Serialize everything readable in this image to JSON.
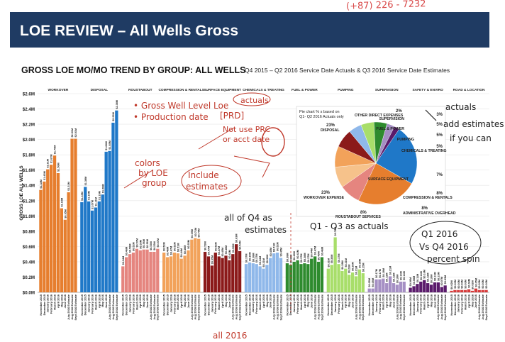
{
  "header": {
    "title": "LOE REVIEW – All Wells Gross",
    "phone_note": "(+87) 226 - 7232"
  },
  "subtitle": {
    "main": "GROSS LOE MO/MO TREND BY GROUP: ALL WELLS",
    "detail": "Q4 2015 – Q2 2016 Service Date Actuals & Q3 2016 Service Date Estimates"
  },
  "chart_data": [
    {
      "type": "bar",
      "ylabel": "GROSS LOE ALL WELLS",
      "ylim": [
        0,
        2.6
      ],
      "yticks": [
        "$0.0M",
        "$0.2M",
        "$0.4M",
        "$0.6M",
        "$0.8M",
        "$1.0M",
        "$1.2M",
        "$1.4M",
        "$1.6M",
        "$1.8M",
        "$2.0M",
        "$2.2M",
        "$2.4M",
        "$2.6M"
      ],
      "categories": [
        "November 2015",
        "December 2015",
        "January 2016",
        "February 2016",
        "March 2016",
        "April 2016",
        "May 2016",
        "June 2016",
        "July 2016 Estimate",
        "Aug 2016 Estimate",
        "Sept 2016 Estimate"
      ],
      "groups": [
        {
          "name": "WORKOVER",
          "color": "#e67e2e",
          "values": [
            1.34,
            1.45,
            1.61,
            1.67,
            1.79,
            1.56,
            1.1,
            0.95,
            1.31,
            2.01,
            2.01
          ]
        },
        {
          "name": "DISPOSAL",
          "color": "#1f78c8",
          "values": [
            1.18,
            1.38,
            1.19,
            1.07,
            1.11,
            1.19,
            1.28,
            1.84,
            1.85,
            2.22,
            2.38
          ]
        },
        {
          "name": "ROUSTABOUT",
          "color": "#e5857f",
          "values": [
            0.34,
            0.46,
            0.5,
            0.52,
            0.57,
            0.55,
            0.56,
            0.56,
            0.53,
            0.53,
            0.57
          ]
        },
        {
          "name": "COMPRESSION & RENTALS",
          "color": "#f2a25a",
          "values": [
            0.52,
            0.46,
            0.47,
            0.52,
            0.51,
            0.44,
            0.48,
            0.55,
            0.69,
            0.71,
            0.7
          ]
        },
        {
          "name": "SURFACE EQUIPMENT",
          "color": "#8b1a1a",
          "values": [
            0.53,
            0.47,
            0.35,
            0.52,
            0.47,
            0.45,
            0.48,
            0.42,
            0.5,
            0.63,
            0.54
          ]
        },
        {
          "name": "CHEMICALS & TREATING",
          "color": "#8fb8ea",
          "values": [
            0.37,
            0.39,
            0.38,
            0.37,
            0.34,
            0.31,
            0.36,
            0.45,
            0.51,
            0.52,
            0.45
          ]
        },
        {
          "name": "FUEL & POWER",
          "color": "#2e8b2e",
          "values": [
            0.38,
            0.36,
            0.4,
            0.42,
            0.37,
            0.38,
            0.37,
            0.44,
            0.47,
            0.4,
            0.46
          ]
        },
        {
          "name": "PUMPING",
          "color": "#a8de6a",
          "values": [
            0.31,
            0.36,
            0.72,
            0.37,
            0.28,
            0.31,
            0.23,
            0.26,
            0.21,
            0.3,
            0.25
          ]
        },
        {
          "name": "SUPERVISION",
          "color": "#a58fc4",
          "values": [
            0.05,
            0.05,
            0.17,
            0.17,
            0.18,
            0.12,
            0.21,
            0.12,
            0.1,
            0.14,
            0.14
          ]
        },
        {
          "name": "SAFETY & ENVIRO",
          "color": "#5a1a6b",
          "values": [
            0.06,
            0.08,
            0.11,
            0.14,
            0.16,
            0.12,
            0.1,
            0.13,
            0.13,
            0.07,
            0.09
          ]
        },
        {
          "name": "ROAD & LOCATION",
          "color": "#d63a3a",
          "values": [
            0.02,
            0.03,
            0.03,
            0.03,
            0.03,
            0.04,
            0.02,
            0.05,
            0.03,
            0.03,
            0.03
          ]
        }
      ],
      "data_labels": [
        [
          "$1.34M",
          "$1.45M",
          "$1.61M",
          "$1.67M",
          "$1.79M",
          "$1.56M",
          "$1.10M",
          "$0.95M",
          "$1.31M",
          "$2.01M",
          "$2.01M"
        ],
        [
          "$1.18M",
          "$1.38M",
          "$1.19M",
          "$1.07M",
          "$1.11M",
          "$1.19M",
          "$1.28M",
          "$1.84M",
          "$1.85M",
          "$2.22M",
          "$2.38M"
        ],
        [
          "$0.34M",
          "$0.46M",
          "$0.50M",
          "$0.52M",
          "$0.57M",
          "$0.55M",
          "$0.56M",
          "$0.56M",
          "$0.53M",
          "$0.53M",
          "$0.57M"
        ],
        [
          "$0.52M",
          "$0.46M",
          "$0.47M",
          "$0.52M",
          "$0.51M",
          "$0.44M",
          "$0.48M",
          "$0.55M",
          "$0.69M",
          "$0.71M",
          "$0.70M"
        ],
        [
          "$0.53M",
          "$0.47M",
          "$0.35M",
          "$0.52M",
          "$0.47M",
          "$0.45M",
          "$0.48M",
          "$0.42M",
          "$0.50M",
          "$0.63M",
          "$0.54M"
        ],
        [
          "$0.37M",
          "$0.39M",
          "$0.38M",
          "$0.37M",
          "$0.34M",
          "$0.31M",
          "$0.36M",
          "$0.45M",
          "$0.51M",
          "$0.52M",
          "$0.45M"
        ],
        [
          "$0.38M",
          "$0.36M",
          "$0.40M",
          "$0.42M",
          "$0.37M",
          "$0.38M",
          "$0.37M",
          "$0.44M",
          "$0.47M",
          "$0.40M",
          "$0.46M"
        ],
        [
          "$0.31M",
          "$0.36M",
          "$0.72M",
          "$0.37M",
          "$0.28M",
          "$0.31M",
          "$0.23M",
          "$0.26M",
          "$0.21M",
          "$0.30M",
          "$0.25M"
        ],
        [
          "$0.05M",
          "$0.05M",
          "$0.17M",
          "$0.17M",
          "$0.18M",
          "$0.12M",
          "$0.21M",
          "$0.12M",
          "$0.10M",
          "$0.14M",
          "$0.14M"
        ],
        [
          "$0.06M",
          "$0.08M",
          "$0.11M",
          "$0.14M",
          "$0.16M",
          "$0.12M",
          "$0.10M",
          "$0.13M",
          "$0.13M",
          "$0.07M",
          "$0.09M"
        ],
        [
          "$0.02M",
          "$0.03M",
          "$0.03M",
          "$0.03M",
          "$0.03M",
          "$0.04M",
          "$0.02M",
          "$0.05M",
          "$0.03M",
          "$0.03M",
          "$0.03M"
        ]
      ]
    },
    {
      "type": "pie",
      "title": "Pie chart % s based on Q1- Q2 2016 Actuals only",
      "slices": [
        {
          "label": "DISPOSAL",
          "percent": 23,
          "color": "#1f78c8"
        },
        {
          "label": "WORKOVER EXPENSE",
          "percent": 23,
          "color": "#e67e2e"
        },
        {
          "label": "ROUSTABOUT SERVICES",
          "percent": 8,
          "color": "#e5857f"
        },
        {
          "label": "ADMINISTRATIVE OVERHEAD",
          "percent": 8,
          "color": "#f6c28b"
        },
        {
          "label": "COMPRESSION & RENTALS",
          "percent": 8,
          "color": "#f2a25a"
        },
        {
          "label": "SURFACE EQUIPMENT",
          "percent": 7,
          "color": "#8b1a1a"
        },
        {
          "label": "CHEMICALS & TREATING",
          "percent": 5,
          "color": "#8fb8ea"
        },
        {
          "label": "PUMPING",
          "percent": 5,
          "color": "#a8de6a"
        },
        {
          "label": "FUEL & POWER",
          "percent": 5,
          "color": "#2e8b2e"
        },
        {
          "label": "SUPERVISION",
          "percent": 3,
          "color": "#a58fc4"
        },
        {
          "label": "OTHER DIRECT EXPENSES",
          "percent": 2,
          "color": "#5a1a6b"
        }
      ],
      "labels": [
        "23%",
        "DISPOSAL",
        "23%",
        "WORKOVER EXPENSE",
        "8%",
        "ROUSTABOUT SERVICES",
        "8%",
        "ADMINISTRATIVE OVERHEAD",
        "8%",
        "COMPRESSION & RENTALS",
        "7%",
        "SURFACE EQUIPMENT",
        "5%",
        "CHEMICALS & TREATING",
        "5%",
        "PUMPING",
        "5%",
        "FUEL & POWER",
        "3%",
        "SUPERVISION",
        "2%",
        "OTHER DIRECT EXPENSES"
      ]
    }
  ],
  "annotations": {
    "gross_well": "• Gross Well Level Loe",
    "production_date": "• Production date",
    "prd": "[PRD]",
    "not_use": "Not use PRC",
    "acct_date": "or acct date",
    "actuals_circle": "actuals",
    "colors1": "colors",
    "colors2": "by LOE",
    "colors3": "group",
    "include1": "Include",
    "include2": "estimates",
    "q4_1": "all of Q4 as",
    "q4_2": "estimates",
    "q1q3": "Q1 - Q3 as actuals",
    "right1": "actuals",
    "right2": "add estimates",
    "right3": "if you can",
    "q1vs1": "Q1 2016",
    "q1vs2": "Vs Q4 2016",
    "q1vs3": "percent spin",
    "all2016": "all 2016"
  }
}
